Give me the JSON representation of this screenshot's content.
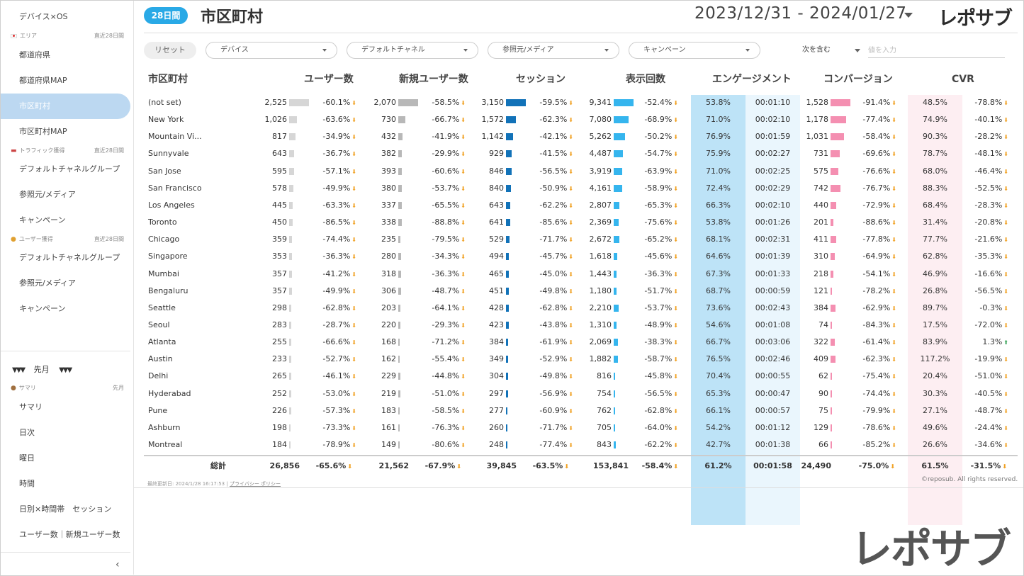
{
  "header": {
    "period_badge": "28日間",
    "title": "市区町村",
    "date_range": "2023/12/31 - 2024/01/27",
    "logo": "レポサブ"
  },
  "sidebar": {
    "top_item": "デバイス×OS",
    "area_section": {
      "label": "エリア",
      "period": "直近28日間"
    },
    "area_items": [
      "都道府県",
      "都道府県MAP",
      "市区町村",
      "市区町村MAP"
    ],
    "active_item": "市区町村",
    "traffic_section": {
      "label": "トラフィック獲得",
      "period": "直近28日間"
    },
    "traffic_items": [
      "デフォルトチャネルグループ",
      "参照元/メディア",
      "キャンペーン"
    ],
    "user_section": {
      "label": "ユーザー獲得",
      "period": "直近28日間"
    },
    "user_items": [
      "デフォルトチャネルグループ",
      "参照元/メディア",
      "キャンペーン"
    ],
    "month_selector": "先月",
    "summary_section": {
      "label": "サマリ",
      "period": "先月"
    },
    "summary_items": [
      "サマリ",
      "日次",
      "曜日",
      "時間",
      "日別×時間帯　セッション",
      "ユーザー数｜新規ユーザー数"
    ],
    "collapse_icon": "chevron-left-icon"
  },
  "filters": {
    "reset": "リセット",
    "dropdowns": [
      "デバイス",
      "デフォルトチャネル",
      "参照元/メディア",
      "キャンペーン"
    ],
    "match_mode": "次を含む",
    "value_placeholder": "値を入力"
  },
  "table": {
    "headers": [
      "市区町村",
      "ユーザー数",
      "新規ユーザー数",
      "セッション",
      "表示回数",
      "エンゲージメント",
      "コンバージョン",
      "CVR"
    ],
    "colors": {
      "users_bar": "#d6d6d6",
      "new_users_bar": "#b8b8b8",
      "sessions_bar": "#1272b8",
      "views_bar": "#35b5ee",
      "conversion_bar": "#f48fb1",
      "engagement_bg": "#bde3f7",
      "time_bg": "#eaf6fd",
      "cvr_bg": "#fdeef2",
      "arrow_down": "#f0a020",
      "arrow_up": "#2e9e4f"
    },
    "rows": [
      {
        "city": "(not set)",
        "users": "2,525",
        "users_chg": "-60.1%",
        "new_users": "2,070",
        "new_chg": "-58.5%",
        "sessions": "3,150",
        "sess_chg": "-59.5%",
        "views": "9,341",
        "views_chg": "-52.4%",
        "engagement": "53.8%",
        "time": "00:01:10",
        "conversions": "1,528",
        "conv_chg": "-91.4%",
        "cvr": "48.5%",
        "cvr_chg": "-78.8%",
        "cvr_dir": "down"
      },
      {
        "city": "New York",
        "users": "1,026",
        "users_chg": "-63.6%",
        "new_users": "730",
        "new_chg": "-66.7%",
        "sessions": "1,572",
        "sess_chg": "-62.3%",
        "views": "7,080",
        "views_chg": "-68.9%",
        "engagement": "71.0%",
        "time": "00:02:10",
        "conversions": "1,178",
        "conv_chg": "-77.4%",
        "cvr": "74.9%",
        "cvr_chg": "-40.1%",
        "cvr_dir": "down"
      },
      {
        "city": "Mountain Vi...",
        "users": "817",
        "users_chg": "-34.9%",
        "new_users": "432",
        "new_chg": "-41.9%",
        "sessions": "1,142",
        "sess_chg": "-42.1%",
        "views": "5,262",
        "views_chg": "-50.2%",
        "engagement": "76.9%",
        "time": "00:01:59",
        "conversions": "1,031",
        "conv_chg": "-58.4%",
        "cvr": "90.3%",
        "cvr_chg": "-28.2%",
        "cvr_dir": "down"
      },
      {
        "city": "Sunnyvale",
        "users": "643",
        "users_chg": "-36.7%",
        "new_users": "382",
        "new_chg": "-29.9%",
        "sessions": "929",
        "sess_chg": "-41.5%",
        "views": "4,487",
        "views_chg": "-54.7%",
        "engagement": "75.9%",
        "time": "00:02:27",
        "conversions": "731",
        "conv_chg": "-69.6%",
        "cvr": "78.7%",
        "cvr_chg": "-48.1%",
        "cvr_dir": "down"
      },
      {
        "city": "San Jose",
        "users": "595",
        "users_chg": "-57.1%",
        "new_users": "393",
        "new_chg": "-60.6%",
        "sessions": "846",
        "sess_chg": "-56.5%",
        "views": "3,919",
        "views_chg": "-63.9%",
        "engagement": "71.0%",
        "time": "00:02:25",
        "conversions": "575",
        "conv_chg": "-76.6%",
        "cvr": "68.0%",
        "cvr_chg": "-46.4%",
        "cvr_dir": "down"
      },
      {
        "city": "San Francisco",
        "users": "578",
        "users_chg": "-49.9%",
        "new_users": "380",
        "new_chg": "-53.7%",
        "sessions": "840",
        "sess_chg": "-50.9%",
        "views": "4,161",
        "views_chg": "-58.9%",
        "engagement": "72.4%",
        "time": "00:02:29",
        "conversions": "742",
        "conv_chg": "-76.7%",
        "cvr": "88.3%",
        "cvr_chg": "-52.5%",
        "cvr_dir": "down"
      },
      {
        "city": "Los Angeles",
        "users": "445",
        "users_chg": "-63.3%",
        "new_users": "337",
        "new_chg": "-65.5%",
        "sessions": "643",
        "sess_chg": "-62.2%",
        "views": "2,807",
        "views_chg": "-65.3%",
        "engagement": "66.3%",
        "time": "00:02:10",
        "conversions": "440",
        "conv_chg": "-72.9%",
        "cvr": "68.4%",
        "cvr_chg": "-28.3%",
        "cvr_dir": "down"
      },
      {
        "city": "Toronto",
        "users": "450",
        "users_chg": "-86.5%",
        "new_users": "338",
        "new_chg": "-88.8%",
        "sessions": "641",
        "sess_chg": "-85.6%",
        "views": "2,369",
        "views_chg": "-75.6%",
        "engagement": "53.8%",
        "time": "00:01:26",
        "conversions": "201",
        "conv_chg": "-88.6%",
        "cvr": "31.4%",
        "cvr_chg": "-20.8%",
        "cvr_dir": "down"
      },
      {
        "city": "Chicago",
        "users": "359",
        "users_chg": "-74.4%",
        "new_users": "235",
        "new_chg": "-79.5%",
        "sessions": "529",
        "sess_chg": "-71.7%",
        "views": "2,672",
        "views_chg": "-65.2%",
        "engagement": "68.1%",
        "time": "00:02:31",
        "conversions": "411",
        "conv_chg": "-77.8%",
        "cvr": "77.7%",
        "cvr_chg": "-21.6%",
        "cvr_dir": "down"
      },
      {
        "city": "Singapore",
        "users": "353",
        "users_chg": "-36.3%",
        "new_users": "280",
        "new_chg": "-34.3%",
        "sessions": "494",
        "sess_chg": "-45.7%",
        "views": "1,618",
        "views_chg": "-45.6%",
        "engagement": "64.6%",
        "time": "00:01:39",
        "conversions": "310",
        "conv_chg": "-64.9%",
        "cvr": "62.8%",
        "cvr_chg": "-35.3%",
        "cvr_dir": "down"
      },
      {
        "city": "Mumbai",
        "users": "357",
        "users_chg": "-41.2%",
        "new_users": "318",
        "new_chg": "-36.3%",
        "sessions": "465",
        "sess_chg": "-45.0%",
        "views": "1,443",
        "views_chg": "-36.3%",
        "engagement": "67.3%",
        "time": "00:01:33",
        "conversions": "218",
        "conv_chg": "-54.1%",
        "cvr": "46.9%",
        "cvr_chg": "-16.6%",
        "cvr_dir": "down"
      },
      {
        "city": "Bengaluru",
        "users": "357",
        "users_chg": "-49.9%",
        "new_users": "306",
        "new_chg": "-48.7%",
        "sessions": "451",
        "sess_chg": "-49.8%",
        "views": "1,180",
        "views_chg": "-51.7%",
        "engagement": "68.7%",
        "time": "00:00:59",
        "conversions": "121",
        "conv_chg": "-78.2%",
        "cvr": "26.8%",
        "cvr_chg": "-56.5%",
        "cvr_dir": "down"
      },
      {
        "city": "Seattle",
        "users": "298",
        "users_chg": "-62.8%",
        "new_users": "203",
        "new_chg": "-64.1%",
        "sessions": "428",
        "sess_chg": "-62.8%",
        "views": "2,210",
        "views_chg": "-53.7%",
        "engagement": "73.6%",
        "time": "00:02:43",
        "conversions": "384",
        "conv_chg": "-62.9%",
        "cvr": "89.7%",
        "cvr_chg": "-0.3%",
        "cvr_dir": "down"
      },
      {
        "city": "Seoul",
        "users": "283",
        "users_chg": "-28.7%",
        "new_users": "220",
        "new_chg": "-29.3%",
        "sessions": "423",
        "sess_chg": "-43.8%",
        "views": "1,310",
        "views_chg": "-48.9%",
        "engagement": "54.6%",
        "time": "00:01:08",
        "conversions": "74",
        "conv_chg": "-84.3%",
        "cvr": "17.5%",
        "cvr_chg": "-72.0%",
        "cvr_dir": "down"
      },
      {
        "city": "Atlanta",
        "users": "255",
        "users_chg": "-66.6%",
        "new_users": "168",
        "new_chg": "-71.2%",
        "sessions": "384",
        "sess_chg": "-61.9%",
        "views": "2,069",
        "views_chg": "-38.3%",
        "engagement": "66.7%",
        "time": "00:03:06",
        "conversions": "322",
        "conv_chg": "-61.4%",
        "cvr": "83.9%",
        "cvr_chg": "1.3%",
        "cvr_dir": "up"
      },
      {
        "city": "Austin",
        "users": "233",
        "users_chg": "-52.7%",
        "new_users": "162",
        "new_chg": "-55.4%",
        "sessions": "349",
        "sess_chg": "-52.9%",
        "views": "1,882",
        "views_chg": "-58.7%",
        "engagement": "76.5%",
        "time": "00:02:46",
        "conversions": "409",
        "conv_chg": "-62.3%",
        "cvr": "117.2%",
        "cvr_chg": "-19.9%",
        "cvr_dir": "down"
      },
      {
        "city": "Delhi",
        "users": "265",
        "users_chg": "-46.1%",
        "new_users": "229",
        "new_chg": "-44.8%",
        "sessions": "304",
        "sess_chg": "-49.8%",
        "views": "816",
        "views_chg": "-45.8%",
        "engagement": "70.4%",
        "time": "00:00:55",
        "conversions": "62",
        "conv_chg": "-75.4%",
        "cvr": "20.4%",
        "cvr_chg": "-51.0%",
        "cvr_dir": "down"
      },
      {
        "city": "Hyderabad",
        "users": "252",
        "users_chg": "-53.0%",
        "new_users": "219",
        "new_chg": "-51.0%",
        "sessions": "297",
        "sess_chg": "-56.9%",
        "views": "754",
        "views_chg": "-56.5%",
        "engagement": "65.3%",
        "time": "00:00:47",
        "conversions": "90",
        "conv_chg": "-74.4%",
        "cvr": "30.3%",
        "cvr_chg": "-40.5%",
        "cvr_dir": "down"
      },
      {
        "city": "Pune",
        "users": "226",
        "users_chg": "-57.3%",
        "new_users": "183",
        "new_chg": "-58.5%",
        "sessions": "277",
        "sess_chg": "-60.9%",
        "views": "762",
        "views_chg": "-62.8%",
        "engagement": "66.1%",
        "time": "00:00:57",
        "conversions": "75",
        "conv_chg": "-79.9%",
        "cvr": "27.1%",
        "cvr_chg": "-48.7%",
        "cvr_dir": "down"
      },
      {
        "city": "Ashburn",
        "users": "198",
        "users_chg": "-73.3%",
        "new_users": "161",
        "new_chg": "-76.3%",
        "sessions": "260",
        "sess_chg": "-71.7%",
        "views": "705",
        "views_chg": "-64.0%",
        "engagement": "54.2%",
        "time": "00:01:12",
        "conversions": "129",
        "conv_chg": "-78.6%",
        "cvr": "49.6%",
        "cvr_chg": "-24.4%",
        "cvr_dir": "down"
      },
      {
        "city": "Montreal",
        "users": "184",
        "users_chg": "-78.9%",
        "new_users": "149",
        "new_chg": "-80.6%",
        "sessions": "248",
        "sess_chg": "-77.4%",
        "views": "843",
        "views_chg": "-62.2%",
        "engagement": "42.7%",
        "time": "00:01:38",
        "conversions": "66",
        "conv_chg": "-85.2%",
        "cvr": "26.6%",
        "cvr_chg": "-34.6%",
        "cvr_dir": "down"
      }
    ],
    "totals": {
      "label": "総計",
      "users": "26,856",
      "users_chg": "-65.6%",
      "new_users": "21,562",
      "new_chg": "-67.9%",
      "sessions": "39,845",
      "sess_chg": "-63.5%",
      "views": "153,841",
      "views_chg": "-58.4%",
      "engagement": "61.2%",
      "time": "00:01:58",
      "conversions": "24,490",
      "conv_chg": "-75.0%",
      "cvr": "61.5%",
      "cvr_chg": "-31.5%"
    }
  },
  "footer": {
    "last_updated": "最終更新日: 2024/1/28 16:17:53",
    "privacy": "プライバシー ポリシー",
    "copyright": "©reposub. All rights reserved."
  },
  "watermark_logo": "レポサブ"
}
